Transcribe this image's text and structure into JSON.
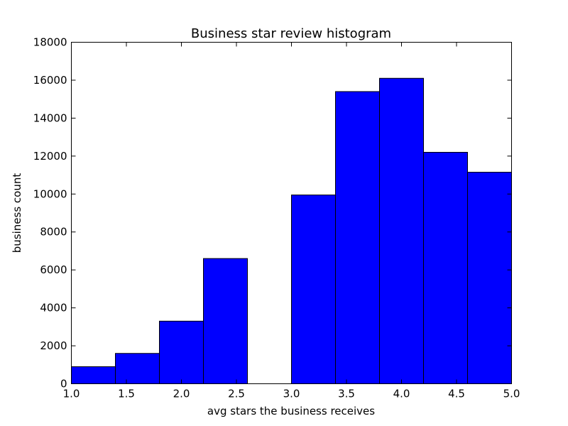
{
  "chart_data": {
    "type": "bar",
    "title": "Business star review histogram",
    "xlabel": "avg stars the business receives",
    "ylabel": "business count",
    "xlim": [
      1.0,
      5.0
    ],
    "ylim": [
      0,
      18000
    ],
    "xticks": [
      "1.0",
      "1.5",
      "2.0",
      "2.5",
      "3.0",
      "3.5",
      "4.0",
      "4.5",
      "5.0"
    ],
    "yticks": [
      "0",
      "2000",
      "4000",
      "6000",
      "8000",
      "10000",
      "12000",
      "14000",
      "16000",
      "18000"
    ],
    "bins": [
      {
        "start": 1.0,
        "end": 1.4,
        "count": 900
      },
      {
        "start": 1.4,
        "end": 1.8,
        "count": 1600
      },
      {
        "start": 1.8,
        "end": 2.2,
        "count": 3300
      },
      {
        "start": 2.2,
        "end": 2.6,
        "count": 6600
      },
      {
        "start": 2.6,
        "end": 3.0,
        "count": 0
      },
      {
        "start": 3.0,
        "end": 3.4,
        "count": 9950
      },
      {
        "start": 3.4,
        "end": 3.8,
        "count": 15400
      },
      {
        "start": 3.8,
        "end": 4.2,
        "count": 16100
      },
      {
        "start": 4.2,
        "end": 4.6,
        "count": 12200
      },
      {
        "start": 4.6,
        "end": 5.0,
        "count": 11150
      }
    ],
    "bar_color": "#0000ff",
    "grid": false,
    "legend": "none"
  }
}
